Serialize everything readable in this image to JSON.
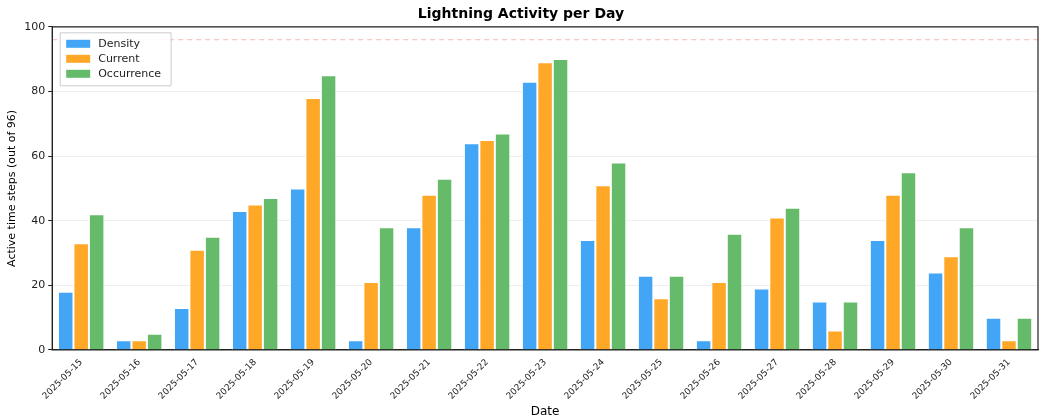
{
  "chart_data": {
    "type": "bar",
    "title": "Lightning Activity per Day",
    "xlabel": "Date",
    "ylabel": "Active time steps (out of 96)",
    "categories": [
      "2025-05-15",
      "2025-05-16",
      "2025-05-17",
      "2025-05-18",
      "2025-05-19",
      "2025-05-20",
      "2025-05-21",
      "2025-05-22",
      "2025-05-23",
      "2025-05-24",
      "2025-05-25",
      "2025-05-26",
      "2025-05-27",
      "2025-05-28",
      "2025-05-29",
      "2025-05-30",
      "2025-05-31"
    ],
    "series": [
      {
        "name": "Density",
        "color": "#42a5f5",
        "values": [
          18,
          3,
          13,
          43,
          50,
          3,
          38,
          64,
          83,
          34,
          23,
          3,
          19,
          15,
          34,
          24,
          10
        ]
      },
      {
        "name": "Current",
        "color": "#ffa726",
        "values": [
          33,
          3,
          31,
          45,
          78,
          21,
          48,
          65,
          89,
          51,
          16,
          21,
          41,
          6,
          48,
          29,
          3
        ]
      },
      {
        "name": "Occurrence",
        "color": "#66bb6a",
        "values": [
          42,
          5,
          35,
          47,
          85,
          38,
          53,
          67,
          90,
          58,
          23,
          36,
          44,
          15,
          55,
          38,
          10
        ]
      }
    ],
    "ylim": [
      0,
      100
    ],
    "yticks": [
      0,
      20,
      40,
      60,
      80,
      100
    ],
    "grid": "y",
    "legend": "top left",
    "ref_lines": [
      {
        "axis": "y",
        "value": 96,
        "color": "#f4a6a6",
        "line_style": "dashed"
      }
    ]
  }
}
